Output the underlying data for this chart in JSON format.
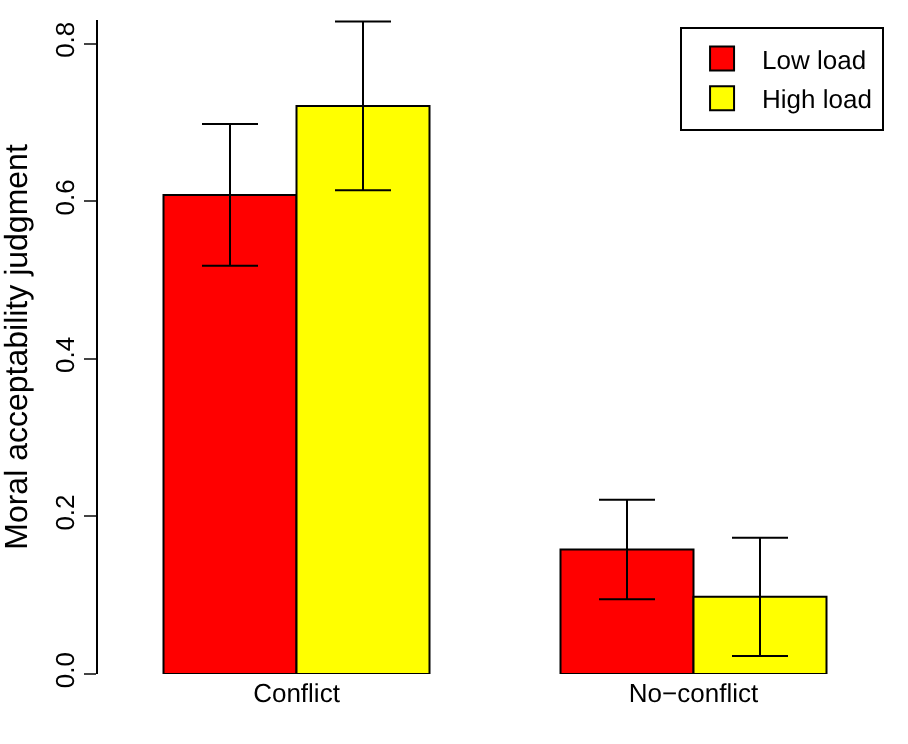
{
  "chart_data": {
    "type": "bar",
    "ylabel": "Moral acceptability judgment",
    "categories": [
      "Conflict",
      "No−conflict"
    ],
    "series": [
      {
        "name": "Low load",
        "color": "#ff0000",
        "values": [
          0.608,
          0.158
        ],
        "errors": [
          0.09,
          0.063
        ]
      },
      {
        "name": "High load",
        "color": "#ffff00",
        "values": [
          0.721,
          0.098
        ],
        "errors": [
          0.107,
          0.075
        ]
      }
    ],
    "ylim": [
      0,
      0.83
    ],
    "yticks": [
      {
        "value": 0,
        "label": "0.0"
      },
      0.2,
      0.4,
      0.6,
      0.8
    ],
    "legend": "top right"
  }
}
